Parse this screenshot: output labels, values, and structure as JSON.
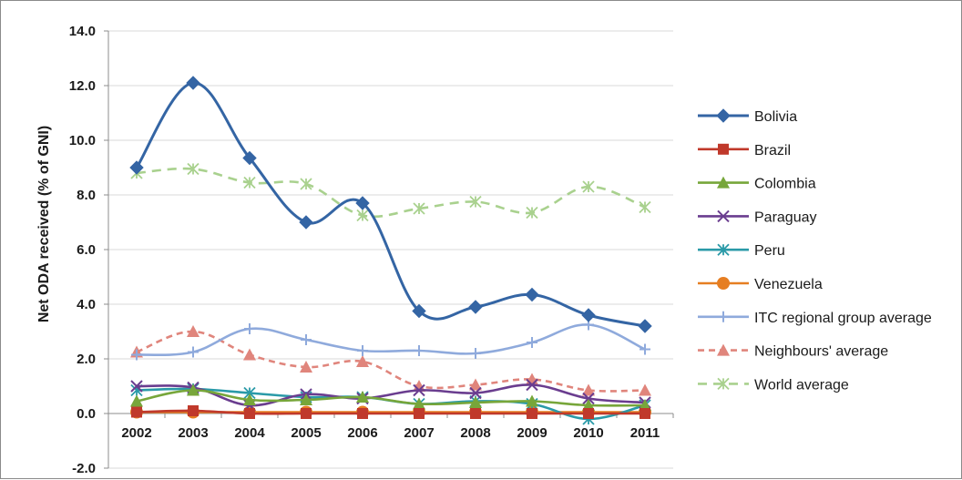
{
  "chart_data": {
    "type": "line",
    "title": "",
    "xlabel": "",
    "ylabel": "Net ODA received (% of GNI)",
    "ylim": [
      -2.0,
      14.0
    ],
    "ytick_values": [
      -2.0,
      0.0,
      2.0,
      4.0,
      6.0,
      8.0,
      10.0,
      12.0,
      14.0
    ],
    "ytick_labels": [
      "-2.0",
      "0.0",
      "2.0",
      "4.0",
      "6.0",
      "8.0",
      "10.0",
      "12.0",
      "14.0"
    ],
    "x": [
      "2002",
      "2003",
      "2004",
      "2005",
      "2006",
      "2007",
      "2008",
      "2009",
      "2010",
      "2011"
    ],
    "grid": "horizontal",
    "legend_position": "right",
    "series": [
      {
        "name": "Bolivia",
        "color": "#3465a4",
        "marker": "diamond",
        "dash": "",
        "values": [
          9.0,
          12.1,
          9.35,
          7.0,
          7.7,
          3.75,
          3.9,
          4.35,
          3.6,
          3.2
        ]
      },
      {
        "name": "Brazil",
        "color": "#c0392b",
        "marker": "square",
        "dash": "",
        "values": [
          0.05,
          0.1,
          0.0,
          0.0,
          0.0,
          0.0,
          0.0,
          0.0,
          0.0,
          0.0
        ]
      },
      {
        "name": "Colombia",
        "color": "#77a63a",
        "marker": "triangle",
        "dash": "",
        "values": [
          0.45,
          0.85,
          0.5,
          0.5,
          0.6,
          0.35,
          0.4,
          0.45,
          0.3,
          0.3
        ]
      },
      {
        "name": "Paraguay",
        "color": "#6a3d8f",
        "marker": "x",
        "dash": "",
        "values": [
          1.0,
          0.95,
          0.3,
          0.7,
          0.55,
          0.85,
          0.75,
          1.05,
          0.55,
          0.4
        ]
      },
      {
        "name": "Peru",
        "color": "#2a9aa8",
        "marker": "asterisk",
        "dash": "",
        "values": [
          0.85,
          0.9,
          0.75,
          0.6,
          0.6,
          0.35,
          0.45,
          0.35,
          -0.2,
          0.3
        ]
      },
      {
        "name": "Venezuela",
        "color": "#e67e22",
        "marker": "circle",
        "dash": "",
        "values": [
          0.05,
          0.05,
          0.05,
          0.05,
          0.05,
          0.05,
          0.05,
          0.05,
          0.05,
          0.05
        ]
      },
      {
        "name": "ITC regional group average",
        "color": "#8faadc",
        "marker": "plus",
        "dash": "",
        "values": [
          2.15,
          2.25,
          3.1,
          2.7,
          2.3,
          2.3,
          2.2,
          2.6,
          3.25,
          2.35
        ]
      },
      {
        "name": "Neighbours' average",
        "color": "#e0857c",
        "marker": "triangle",
        "dash": "7,5",
        "values": [
          2.25,
          3.0,
          2.15,
          1.7,
          1.9,
          1.0,
          1.05,
          1.25,
          0.85,
          0.85
        ]
      },
      {
        "name": "World average",
        "color": "#a9d18e",
        "marker": "asterisk",
        "dash": "10,7",
        "values": [
          8.8,
          8.95,
          8.45,
          8.4,
          7.25,
          7.5,
          7.75,
          7.35,
          8.3,
          7.55
        ]
      }
    ]
  }
}
